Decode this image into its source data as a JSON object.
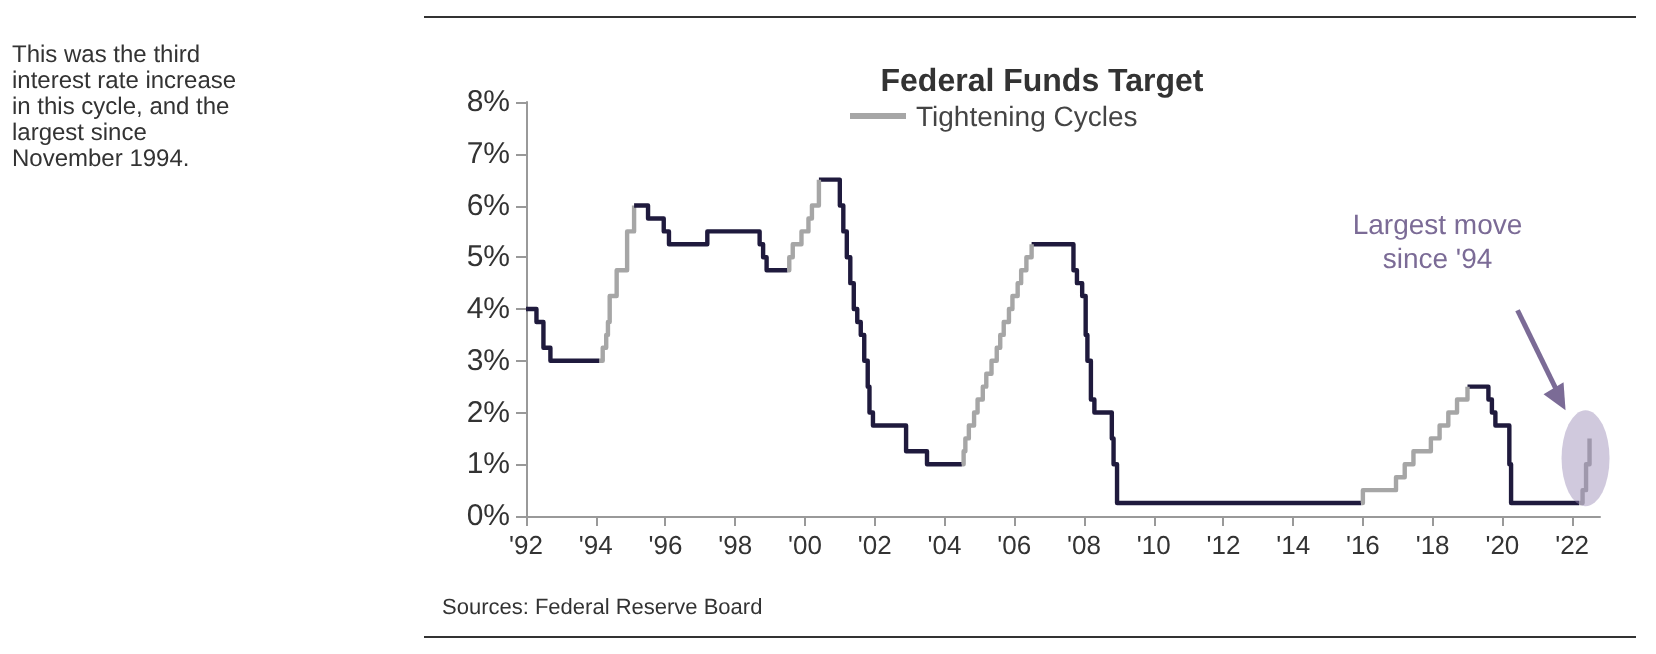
{
  "chart_data": {
    "type": "step",
    "title": "Federal Funds Target",
    "legend": "top",
    "series": [
      {
        "color": "#1f1a3d",
        "x": [
          1992.0,
          1992.3,
          1992.5,
          1992.7,
          1994.1
        ],
        "values": [
          4.0,
          3.75,
          3.25,
          3.0,
          3.0
        ]
      },
      {
        "color": "#1f1a3d",
        "x": [
          1995.1,
          1995.5,
          1995.95,
          1996.1,
          1997.2,
          1998.7,
          1998.8,
          1998.9,
          1999.5
        ],
        "values": [
          6.0,
          5.75,
          5.5,
          5.25,
          5.5,
          5.25,
          5.0,
          4.75,
          4.75
        ]
      },
      {
        "color": "#1f1a3d",
        "x": [
          2000.4,
          2001.0,
          2001.1,
          2001.2,
          2001.3,
          2001.4,
          2001.5,
          2001.6,
          2001.7,
          2001.8,
          2001.85,
          2001.95,
          2002.9,
          2003.5,
          2004.5
        ],
        "values": [
          6.5,
          6.0,
          5.5,
          5.0,
          4.5,
          4.0,
          3.75,
          3.5,
          3.0,
          2.5,
          2.0,
          1.75,
          1.25,
          1.0,
          1.0
        ]
      },
      {
        "color": "#1f1a3d",
        "x": [
          2006.5,
          2007.7,
          2007.8,
          2007.95,
          2008.05,
          2008.1,
          2008.2,
          2008.3,
          2008.8,
          2008.85,
          2008.95,
          2015.95
        ],
        "values": [
          5.25,
          4.75,
          4.5,
          4.25,
          3.5,
          3.0,
          2.25,
          2.0,
          1.5,
          1.0,
          0.25,
          0.25
        ]
      },
      {
        "color": "#1f1a3d",
        "x": [
          2019.0,
          2019.6,
          2019.7,
          2019.8,
          2020.2,
          2020.25,
          2022.2
        ],
        "values": [
          2.5,
          2.25,
          2.0,
          1.75,
          1.0,
          0.25,
          0.25
        ]
      },
      {
        "name": "Tightening Cycles",
        "color": "#a6a6a6",
        "x": [
          1994.1,
          1994.2,
          1994.3,
          1994.35,
          1994.4,
          1994.6,
          1994.9,
          1995.1
        ],
        "values": [
          3.0,
          3.25,
          3.5,
          3.75,
          4.25,
          4.75,
          5.5,
          6.0
        ]
      },
      {
        "color": "#a6a6a6",
        "x": [
          1999.5,
          1999.55,
          1999.65,
          1999.9,
          2000.1,
          2000.2,
          2000.4
        ],
        "values": [
          4.75,
          5.0,
          5.25,
          5.5,
          5.75,
          6.0,
          6.5
        ]
      },
      {
        "color": "#a6a6a6",
        "x": [
          2004.5,
          2004.55,
          2004.6,
          2004.7,
          2004.85,
          2004.95,
          2005.1,
          2005.2,
          2005.35,
          2005.5,
          2005.6,
          2005.7,
          2005.85,
          2005.95,
          2006.1,
          2006.2,
          2006.35,
          2006.5
        ],
        "values": [
          1.0,
          1.25,
          1.5,
          1.75,
          2.0,
          2.25,
          2.5,
          2.75,
          3.0,
          3.25,
          3.5,
          3.75,
          4.0,
          4.25,
          4.5,
          4.75,
          5.0,
          5.25
        ]
      },
      {
        "color": "#a6a6a6",
        "x": [
          2015.95,
          2016.0,
          2016.95,
          2017.2,
          2017.45,
          2017.95,
          2018.2,
          2018.45,
          2018.7,
          2019.0
        ],
        "values": [
          0.25,
          0.5,
          0.75,
          1.0,
          1.25,
          1.5,
          1.75,
          2.0,
          2.25,
          2.5
        ]
      },
      {
        "color": "#a6a6a6",
        "x": [
          2022.2,
          2022.3,
          2022.4,
          2022.5
        ],
        "values": [
          0.25,
          0.5,
          1.0,
          1.5
        ]
      }
    ],
    "xlim": [
      1992,
      2022.8
    ],
    "xticks": [
      {
        "value": 1992,
        "label": "'92"
      },
      {
        "value": 1994,
        "label": "'94"
      },
      {
        "value": 1996,
        "label": "'96"
      },
      {
        "value": 1998,
        "label": "'98"
      },
      {
        "value": 2000,
        "label": "'00"
      },
      {
        "value": 2002,
        "label": "'02"
      },
      {
        "value": 2004,
        "label": "'04"
      },
      {
        "value": 2006,
        "label": "'06"
      },
      {
        "value": 2008,
        "label": "'08"
      },
      {
        "value": 2010,
        "label": "'10"
      },
      {
        "value": 2012,
        "label": "'12"
      },
      {
        "value": 2014,
        "label": "'14"
      },
      {
        "value": 2016,
        "label": "'16"
      },
      {
        "value": 2018,
        "label": "'18"
      },
      {
        "value": 2020,
        "label": "'20"
      },
      {
        "value": 2022,
        "label": "'22"
      }
    ],
    "ylim": [
      0,
      8
    ],
    "yticks": [
      {
        "value": 0,
        "label": "0%"
      },
      {
        "value": 1,
        "label": "1%"
      },
      {
        "value": 2,
        "label": "2%"
      },
      {
        "value": 3,
        "label": "3%"
      },
      {
        "value": 4,
        "label": "4%"
      },
      {
        "value": 5,
        "label": "5%"
      },
      {
        "value": 6,
        "label": "6%"
      },
      {
        "value": 7,
        "label": "7%"
      },
      {
        "value": 8,
        "label": "8%"
      }
    ],
    "grid": false,
    "marker": "none",
    "line_style": "solid",
    "annotations": [
      "This was the third interest rate increase in this cycle, and the largest since November 1994.",
      "Largest move since '94",
      "Sources: Federal Reserve Board"
    ]
  }
}
